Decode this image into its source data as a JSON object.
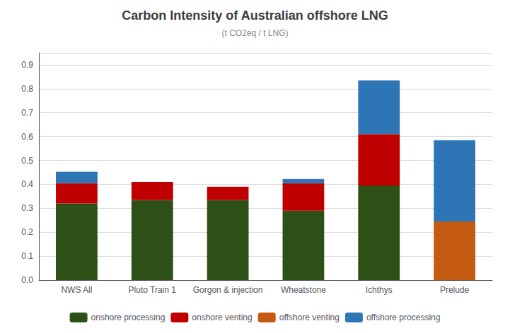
{
  "chart_data": {
    "type": "bar",
    "stacked": true,
    "title": "Carbon Intensity of Australian offshore LNG",
    "subtitle": "(t CO2eq / t LNG)",
    "categories": [
      "NWS All",
      "Pluto Train 1",
      "Gorgon & injection",
      "Wheatstone",
      "Ichthys",
      "Prelude"
    ],
    "series": [
      {
        "name": "onshore processing",
        "color": "#2d5016",
        "values": [
          0.32,
          0.335,
          0.335,
          0.29,
          0.395,
          0.0
        ]
      },
      {
        "name": "onshore venting",
        "color": "#c00000",
        "values": [
          0.085,
          0.075,
          0.055,
          0.115,
          0.215,
          0.0
        ]
      },
      {
        "name": "offshore venting",
        "color": "#c55a11",
        "values": [
          0.0,
          0.0,
          0.0,
          0.0,
          0.0,
          0.245
        ]
      },
      {
        "name": "offshore processing",
        "color": "#2e75b6",
        "values": [
          0.048,
          0.0,
          0.0,
          0.018,
          0.225,
          0.34
        ]
      }
    ],
    "ylim": [
      0,
      0.95
    ],
    "yticks": [
      {
        "value": 0,
        "label": "0.0"
      },
      0.1,
      0.2,
      0.3,
      0.4,
      0.5,
      0.6,
      0.7,
      0.8,
      0.9
    ],
    "grid": true,
    "legend": "bottom"
  }
}
